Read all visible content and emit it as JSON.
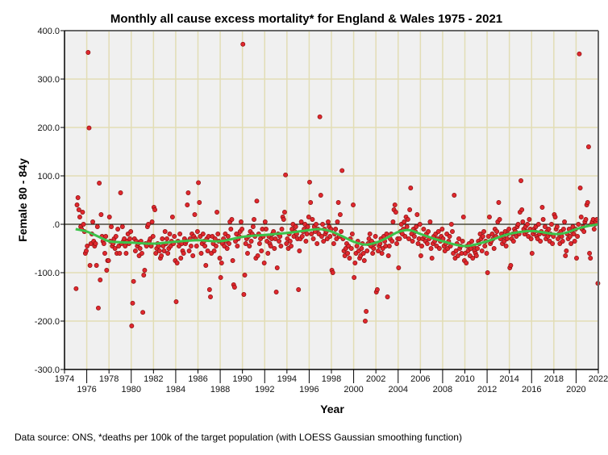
{
  "chart_data": {
    "type": "scatter",
    "title": "Monthly all cause excess mortality* for England & Wales 1975 - 2021",
    "xlabel": "Year",
    "ylabel": "Female 80 - 84y",
    "footnote": "Data source: ONS, *deaths per 100k of the target population (with LOESS Gaussian smoothing function)",
    "xlim": [
      1974,
      2022
    ],
    "ylim": [
      -300,
      400
    ],
    "x_ticks": [
      "1974",
      "1976",
      "1978",
      "1980",
      "1982",
      "1984",
      "1986",
      "1988",
      "1990",
      "1992",
      "1994",
      "1996",
      "1998",
      "2000",
      "2002",
      "2004",
      "2006",
      "2008",
      "2010",
      "2012",
      "2014",
      "2016",
      "2018",
      "2020",
      "2022"
    ],
    "y_ticks": [
      "400.0",
      "300.0",
      "200.0",
      "100.0",
      ".0",
      "-100.0",
      "-200.0",
      "-300.0"
    ],
    "grid": true,
    "colors": {
      "point_fill": "#e0282e",
      "point_stroke": "#8a1010",
      "loess": "#3cc24a",
      "grid": "#e2ddb5",
      "plot_bg": "#f0f0f0"
    },
    "series": [
      {
        "name": "Monthly excess mortality",
        "start_year": 1975,
        "interval": "monthly",
        "values": [
          -133,
          40,
          55,
          30,
          15,
          -5,
          -10,
          25,
          0,
          -15,
          -60,
          -55,
          -45,
          355,
          199,
          -85,
          -40,
          -20,
          5,
          -35,
          -45,
          -40,
          -85,
          -5,
          -173,
          85,
          -115,
          20,
          -25,
          -35,
          -40,
          -60,
          -25,
          -95,
          -75,
          -75,
          15,
          -35,
          -5,
          -45,
          -40,
          -30,
          -50,
          -25,
          -60,
          -10,
          -45,
          -60,
          65,
          -40,
          -5,
          -35,
          -30,
          -45,
          -60,
          -35,
          -20,
          -40,
          -30,
          -15,
          -210,
          -163,
          -118,
          -30,
          -55,
          -35,
          -45,
          -40,
          -65,
          -50,
          -35,
          -60,
          -182,
          -105,
          -95,
          -40,
          -45,
          -5,
          0,
          -35,
          -30,
          -45,
          5,
          -25,
          35,
          30,
          -60,
          -50,
          -40,
          -45,
          -55,
          -70,
          -65,
          -30,
          -45,
          -55,
          -15,
          -40,
          -30,
          -60,
          -50,
          -20,
          -45,
          -35,
          15,
          -40,
          -25,
          -75,
          -160,
          -80,
          -35,
          -45,
          -20,
          -70,
          -40,
          -55,
          -60,
          -30,
          -40,
          -35,
          40,
          65,
          -55,
          -30,
          -45,
          -20,
          -65,
          -25,
          20,
          -30,
          -45,
          -15,
          86,
          45,
          -25,
          -60,
          -40,
          -20,
          -35,
          -45,
          -85,
          -30,
          -55,
          -25,
          -135,
          -150,
          -60,
          -25,
          -40,
          -55,
          -30,
          -45,
          25,
          -20,
          -35,
          -70,
          -110,
          -80,
          -40,
          -30,
          -45,
          -20,
          -35,
          -50,
          -25,
          -40,
          5,
          -10,
          10,
          -75,
          -125,
          -130,
          -35,
          -20,
          -45,
          -30,
          -25,
          -15,
          5,
          -10,
          372,
          -145,
          -105,
          -40,
          -30,
          -60,
          -25,
          -45,
          -15,
          -35,
          -20,
          -5,
          10,
          -25,
          -70,
          48,
          -65,
          -20,
          -40,
          -30,
          -55,
          -10,
          -25,
          -80,
          5,
          -10,
          -35,
          -60,
          -25,
          -40,
          -45,
          -30,
          -20,
          -15,
          -50,
          -30,
          -140,
          -90,
          -20,
          -35,
          -25,
          -45,
          -10,
          15,
          10,
          25,
          102,
          -40,
          -30,
          -50,
          -20,
          -35,
          -45,
          -10,
          0,
          -25,
          -15,
          -5,
          -20,
          -30,
          -135,
          -55,
          -30,
          5,
          -25,
          -15,
          -10,
          0,
          -35,
          -20,
          -5,
          15,
          87,
          45,
          -20,
          10,
          -30,
          -5,
          -15,
          0,
          -40,
          -10,
          -20,
          222,
          60,
          -25,
          0,
          -35,
          -10,
          -20,
          -15,
          -30,
          5,
          -5,
          -25,
          -10,
          -95,
          -100,
          -40,
          -20,
          -10,
          -30,
          5,
          45,
          -25,
          20,
          -15,
          111,
          -30,
          -55,
          -65,
          -50,
          -40,
          -60,
          -45,
          -70,
          -30,
          -50,
          -20,
          40,
          -110,
          -80,
          -60,
          -45,
          -35,
          -55,
          -70,
          -65,
          -50,
          -40,
          -60,
          -75,
          -200,
          -180,
          -55,
          -40,
          -30,
          -20,
          -45,
          -35,
          -60,
          -50,
          -40,
          -25,
          -140,
          -135,
          -55,
          -45,
          -40,
          -30,
          -60,
          -50,
          -25,
          -35,
          -45,
          -20,
          -150,
          -65,
          -45,
          -30,
          -20,
          -35,
          5,
          30,
          40,
          25,
          -40,
          -30,
          -90,
          -30,
          -15,
          0,
          -20,
          -10,
          5,
          -25,
          15,
          -5,
          10,
          -30,
          30,
          75,
          -20,
          -35,
          -10,
          -25,
          -15,
          -5,
          20,
          -40,
          -30,
          0,
          -65,
          -45,
          -30,
          -10,
          -25,
          -35,
          -20,
          -40,
          -15,
          -30,
          5,
          -50,
          -70,
          -40,
          -25,
          -35,
          -20,
          -45,
          -30,
          -15,
          -50,
          -35,
          -25,
          -10,
          -30,
          -45,
          -55,
          -40,
          -20,
          -50,
          -35,
          -25,
          -45,
          0,
          -15,
          -60,
          60,
          -70,
          -55,
          -40,
          -65,
          -30,
          -50,
          -45,
          -60,
          -35,
          15,
          -75,
          -60,
          -80,
          -45,
          -55,
          -40,
          -65,
          -50,
          -35,
          -70,
          -45,
          -55,
          -60,
          -65,
          -50,
          -35,
          -40,
          -20,
          -30,
          -55,
          -25,
          -15,
          -45,
          -35,
          -60,
          -100,
          -25,
          15,
          -40,
          -35,
          -20,
          -30,
          -50,
          -10,
          -25,
          -15,
          5,
          45,
          10,
          -30,
          -20,
          -40,
          -25,
          -35,
          -15,
          -45,
          -30,
          -20,
          -10,
          -90,
          -85,
          -30,
          -20,
          -35,
          -10,
          -15,
          -25,
          -5,
          0,
          -20,
          25,
          90,
          30,
          5,
          -10,
          -20,
          -5,
          -15,
          0,
          -25,
          10,
          -10,
          -30,
          -60,
          -20,
          -10,
          -15,
          -5,
          -25,
          -30,
          0,
          -20,
          -35,
          -15,
          35,
          10,
          -20,
          -5,
          -30,
          -15,
          -25,
          -10,
          -35,
          -20,
          0,
          -40,
          -25,
          20,
          15,
          -10,
          -5,
          -30,
          -20,
          -40,
          -15,
          -25,
          -35,
          -10,
          5,
          -65,
          -55,
          -20,
          -30,
          -10,
          -25,
          -40,
          -15,
          -5,
          -20,
          -35,
          -10,
          -70,
          -25,
          0,
          352,
          75,
          15,
          -10,
          -5,
          -15,
          5,
          10,
          40,
          45,
          160,
          -60,
          -70,
          0,
          5,
          10,
          -10,
          0,
          5,
          10,
          -122
        ]
      },
      {
        "name": "LOESS fit",
        "x": [
          1975,
          1976,
          1977,
          1978,
          1979,
          1980,
          1982,
          1984,
          1986,
          1988,
          1990,
          1992,
          1994,
          1996,
          1997,
          1998,
          1999,
          2000,
          2001,
          2002,
          2003,
          2004,
          2005,
          2006,
          2007,
          2008,
          2010,
          2012,
          2014,
          2016,
          2018,
          2019,
          2020,
          2021,
          2022
        ],
        "y": [
          -10,
          -15,
          -25,
          -35,
          -37,
          -38,
          -40,
          -36,
          -33,
          -35,
          -26,
          -22,
          -18,
          -12,
          -10,
          -15,
          -25,
          -36,
          -42,
          -38,
          -28,
          -16,
          -12,
          -20,
          -28,
          -35,
          -45,
          -35,
          -20,
          -14,
          -20,
          -18,
          -10,
          -4,
          0
        ]
      }
    ]
  }
}
